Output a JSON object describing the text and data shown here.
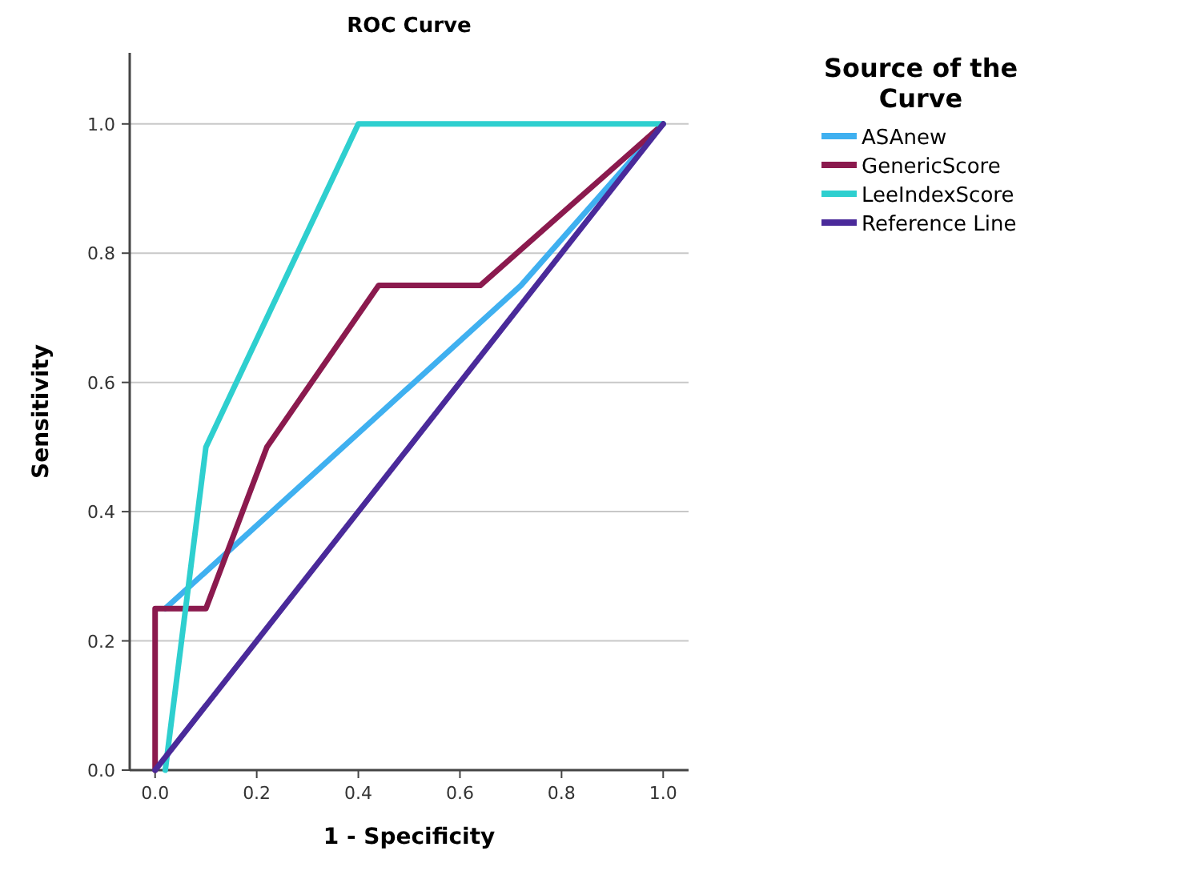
{
  "chart_data": {
    "type": "line",
    "title": "ROC Curve",
    "xlabel": "1 - Specificity",
    "ylabel": "Sensitivity",
    "legend_title": "Source of the Curve",
    "xlim": [
      -0.05,
      1.05
    ],
    "xticks": [
      {
        "value": 0,
        "label": "0.0"
      },
      {
        "value": 0.2,
        "label": "0.2"
      },
      {
        "value": 0.4,
        "label": "0.4"
      },
      {
        "value": 0.6,
        "label": "0.6"
      },
      {
        "value": 0.8,
        "label": "0.8"
      },
      {
        "value": 1,
        "label": "1.0"
      }
    ],
    "ylim": [
      0,
      1.11
    ],
    "yticks": [
      {
        "value": 0,
        "label": "0.0"
      },
      {
        "value": 0.2,
        "label": "0.2"
      },
      {
        "value": 0.4,
        "label": "0.4"
      },
      {
        "value": 0.6,
        "label": "0.6"
      },
      {
        "value": 0.8,
        "label": "0.8"
      },
      {
        "value": 1,
        "label": "1.0"
      }
    ],
    "grid": "y",
    "legend": "top right",
    "marker": "none",
    "line_style": "solid",
    "series": [
      {
        "name": "ASAnew",
        "color": "#3fb0f0",
        "x": [
          0.02,
          0.72,
          1
        ],
        "values": [
          0.25,
          0.75,
          1
        ]
      },
      {
        "name": "GenericScore",
        "color": "#8b1a4e",
        "x": [
          0,
          0,
          0.1,
          0.22,
          0.44,
          0.64,
          1
        ],
        "values": [
          0,
          0.25,
          0.25,
          0.5,
          0.75,
          0.75,
          1
        ]
      },
      {
        "name": "LeeIndexScore",
        "color": "#2ecfcf",
        "x": [
          0.02,
          0.1,
          0.4,
          1
        ],
        "values": [
          0,
          0.5,
          1,
          1
        ]
      },
      {
        "name": "Reference Line",
        "color": "#4a2a9a",
        "x": [
          0,
          1
        ],
        "values": [
          0,
          1
        ]
      }
    ]
  }
}
